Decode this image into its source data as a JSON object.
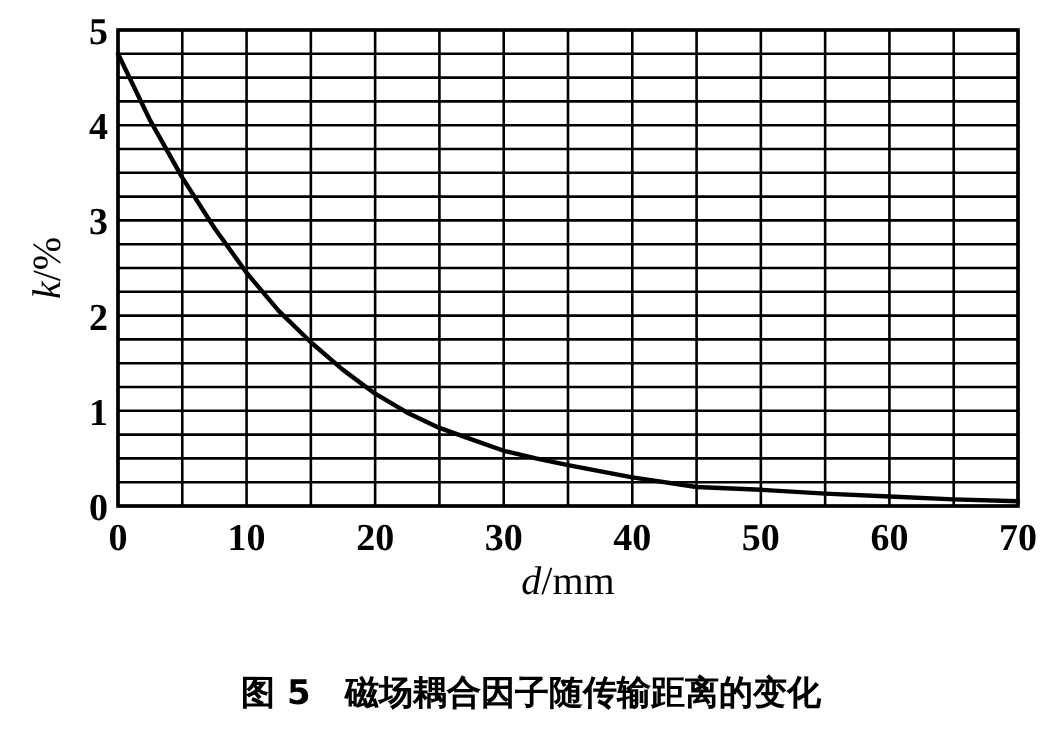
{
  "chart_data": {
    "type": "line",
    "title": "图 5　磁场耦合因子随传输距离的变化",
    "xlabel": "*d*/mm",
    "ylabel": "*k*/%",
    "x": [
      0,
      2.5,
      5,
      7.5,
      10,
      12.5,
      15,
      17.5,
      20,
      22.5,
      25,
      27.5,
      30,
      32.5,
      35,
      40,
      45,
      50,
      55,
      60,
      65,
      70
    ],
    "series": [
      {
        "color": "#000000",
        "values": [
          4.75,
          4.05,
          3.45,
          2.92,
          2.45,
          2.05,
          1.72,
          1.43,
          1.18,
          0.98,
          0.82,
          0.7,
          0.58,
          0.5,
          0.43,
          0.3,
          0.2,
          0.17,
          0.13,
          0.1,
          0.07,
          0.05
        ]
      }
    ],
    "xlim": [
      0,
      70
    ],
    "ylim": [
      0,
      5
    ],
    "xticks": [
      0,
      {
        "value": 5,
        "label": null
      },
      10,
      {
        "value": 15,
        "label": null
      },
      20,
      {
        "value": 25,
        "label": null
      },
      30,
      {
        "value": 35,
        "label": null
      },
      40,
      {
        "value": 45,
        "label": null
      },
      50,
      {
        "value": 55,
        "label": null
      },
      60,
      {
        "value": 65,
        "label": null
      },
      70
    ],
    "yticks": [
      0,
      {
        "value": 0.25,
        "label": null
      },
      {
        "value": 0.5,
        "label": null
      },
      {
        "value": 0.75,
        "label": null
      },
      1,
      {
        "value": 1.25,
        "label": null
      },
      {
        "value": 1.5,
        "label": null
      },
      {
        "value": 1.75,
        "label": null
      },
      2,
      {
        "value": 2.25,
        "label": null
      },
      {
        "value": 2.5,
        "label": null
      },
      {
        "value": 2.75,
        "label": null
      },
      3,
      {
        "value": 3.25,
        "label": null
      },
      {
        "value": 3.5,
        "label": null
      },
      {
        "value": 3.75,
        "label": null
      },
      4,
      {
        "value": 4.25,
        "label": null
      },
      {
        "value": 4.5,
        "label": null
      },
      {
        "value": 4.75,
        "label": null
      },
      5
    ],
    "grid": true,
    "marker": "none",
    "line_style": "solid"
  }
}
